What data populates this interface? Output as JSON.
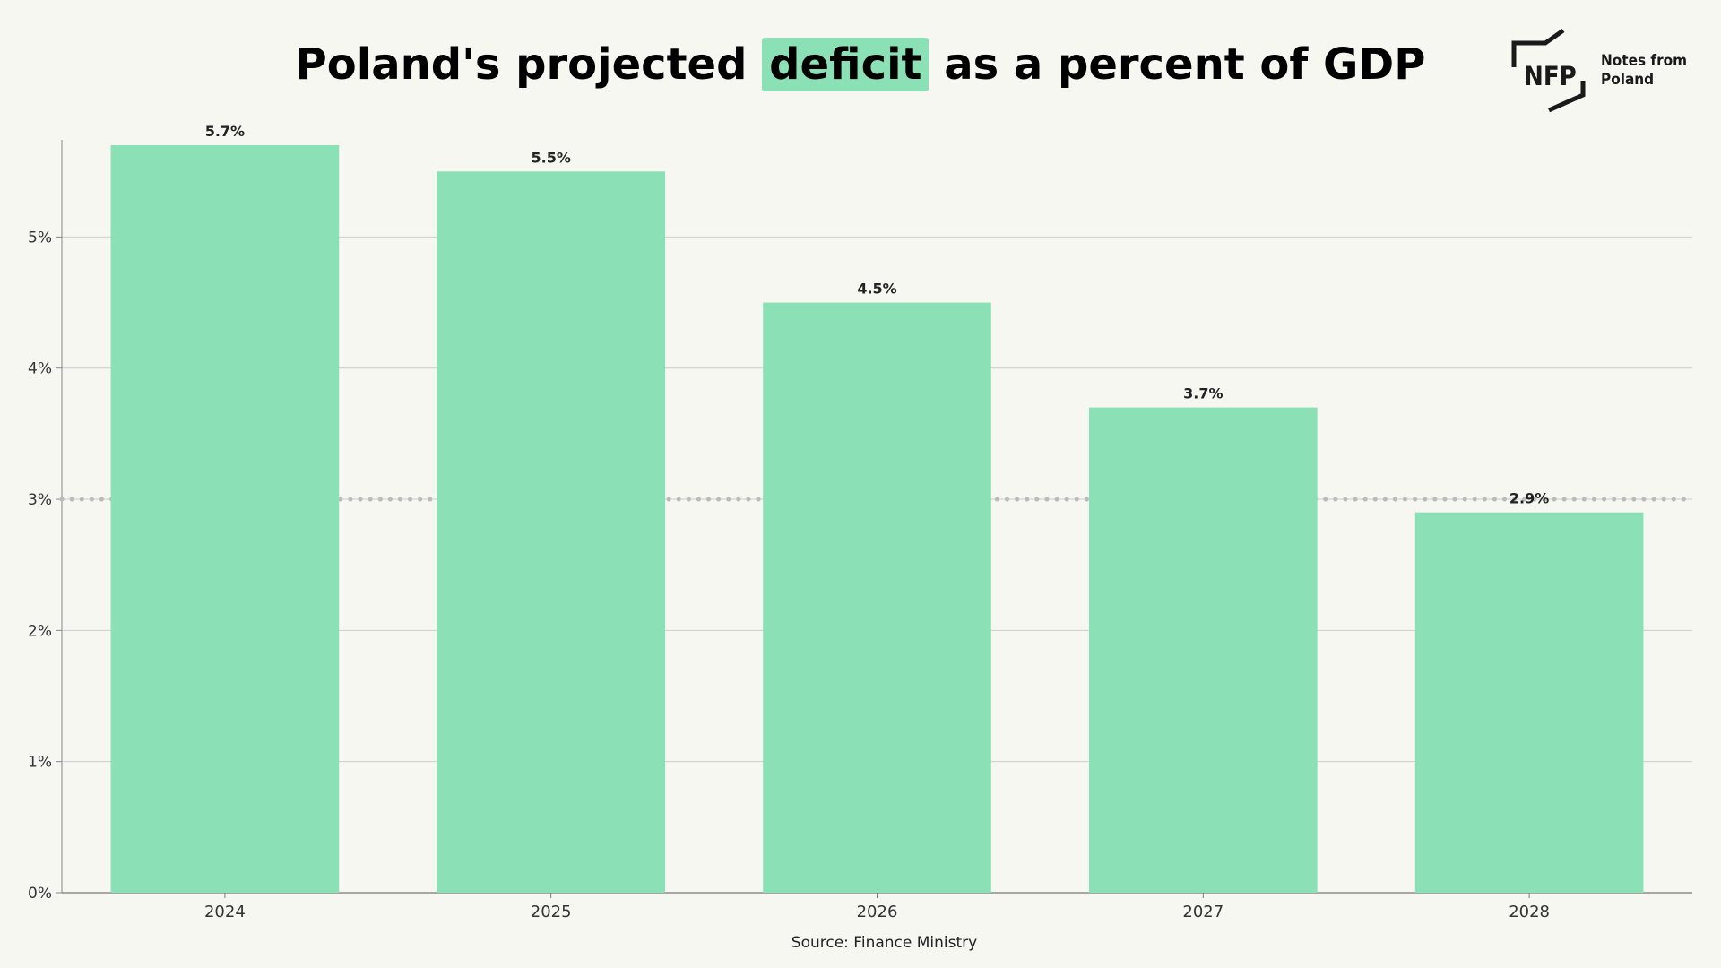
{
  "title": {
    "before": "Poland's projected ",
    "highlight": "deficit",
    "after": " as a percent of GDP"
  },
  "logo": {
    "mark": "NFP",
    "line1": "Notes from",
    "line2": "Poland"
  },
  "source": "Source: Finance Ministry",
  "colors": {
    "bar": "#8be1b5",
    "background": "#f6f7f1",
    "grid": "#cccccc",
    "reference_line": "#bbbbbb"
  },
  "chart_data": {
    "type": "bar",
    "categories": [
      "2024",
      "2025",
      "2026",
      "2027",
      "2028"
    ],
    "values": [
      5.7,
      5.5,
      4.5,
      3.7,
      2.9
    ],
    "data_labels": [
      "5.7%",
      "5.5%",
      "4.5%",
      "3.7%",
      "2.9%"
    ],
    "ylim": [
      0,
      5.7
    ],
    "yticks": [
      0,
      1,
      2,
      3,
      4,
      5
    ],
    "ytick_labels": [
      "0%",
      "1%",
      "2%",
      "3%",
      "4%",
      "5%"
    ],
    "reference_line": 3,
    "reference_style": "dotted",
    "grid": true,
    "legend": "none"
  }
}
